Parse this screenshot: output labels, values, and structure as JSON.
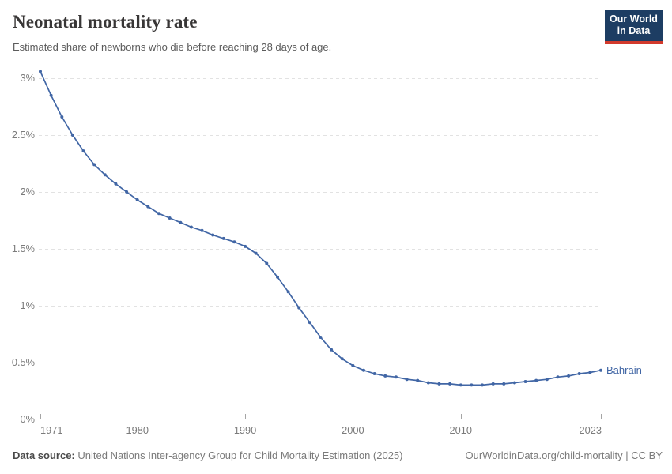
{
  "header": {
    "title": "Neonatal mortality rate",
    "subtitle": "Estimated share of newborns who die before reaching 28 days of age.",
    "logo_line1": "Our World",
    "logo_line2": "in Data",
    "logo_bg_color": "#1d3d63",
    "logo_bar_color": "#d23a2c"
  },
  "footer": {
    "source_label": "Data source:",
    "source_text": "United Nations Inter-agency Group for Child Mortality Estimation (2025)",
    "rights": "OurWorldinData.org/child-mortality | CC BY"
  },
  "chart_data": {
    "type": "line",
    "title": "Neonatal mortality rate",
    "subtitle": "Estimated share of newborns who die before reaching 28 days of age.",
    "xlabel": "",
    "ylabel": "",
    "ylim": [
      0,
      3.1
    ],
    "xlim": [
      1971,
      2023
    ],
    "grid": "horizontal-dashed",
    "legend_position": "end-of-line-label",
    "colors": {
      "line": "#4166a5",
      "gridline": "#e2e2e2",
      "axis": "#a5a5a5",
      "tick_label": "#7b7b7b"
    },
    "y_ticks": [
      {
        "value": 3,
        "label": "3%"
      },
      {
        "value": 2.5,
        "label": "2.5%"
      },
      {
        "value": 2,
        "label": "2%"
      },
      {
        "value": 1.5,
        "label": "1.5%"
      },
      {
        "value": 1,
        "label": "1%"
      },
      {
        "value": 0.5,
        "label": "0.5%"
      },
      {
        "value": 0,
        "label": "0%"
      }
    ],
    "x_ticks": [
      {
        "value": 1971,
        "label": "1971"
      },
      {
        "value": 1980,
        "label": "1980"
      },
      {
        "value": 1990,
        "label": "1990"
      },
      {
        "value": 2000,
        "label": "2000"
      },
      {
        "value": 2010,
        "label": "2010"
      },
      {
        "value": 2023,
        "label": "2023"
      }
    ],
    "series": [
      {
        "name": "Bahrain",
        "color": "#4166a5",
        "years": [
          1971,
          1972,
          1973,
          1974,
          1975,
          1976,
          1977,
          1978,
          1979,
          1980,
          1981,
          1982,
          1983,
          1984,
          1985,
          1986,
          1987,
          1988,
          1989,
          1990,
          1991,
          1992,
          1993,
          1994,
          1995,
          1996,
          1997,
          1998,
          1999,
          2000,
          2001,
          2002,
          2003,
          2004,
          2005,
          2006,
          2007,
          2008,
          2009,
          2010,
          2011,
          2012,
          2013,
          2014,
          2015,
          2016,
          2017,
          2018,
          2019,
          2020,
          2021,
          2022,
          2023
        ],
        "values": [
          3.06,
          2.85,
          2.66,
          2.5,
          2.36,
          2.24,
          2.15,
          2.07,
          2.0,
          1.93,
          1.87,
          1.81,
          1.77,
          1.73,
          1.69,
          1.66,
          1.62,
          1.59,
          1.56,
          1.52,
          1.46,
          1.37,
          1.25,
          1.12,
          0.98,
          0.85,
          0.72,
          0.61,
          0.53,
          0.47,
          0.43,
          0.4,
          0.38,
          0.37,
          0.35,
          0.34,
          0.32,
          0.31,
          0.31,
          0.3,
          0.3,
          0.3,
          0.31,
          0.31,
          0.32,
          0.33,
          0.34,
          0.35,
          0.37,
          0.38,
          0.4,
          0.41,
          0.43
        ],
        "unit": "%"
      }
    ]
  }
}
